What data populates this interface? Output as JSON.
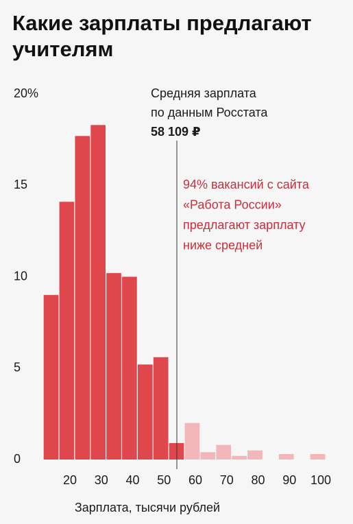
{
  "chart_data": {
    "type": "histogram",
    "title": [
      "Какие зарплаты предлагают",
      "учителям"
    ],
    "xlabel": "Зарплата, тысячи рублей",
    "bins": [
      11.5,
      16.5,
      21.5,
      26.5,
      31.5,
      36.5,
      41.5,
      46.5,
      51.5,
      56.5,
      61.5,
      66.5,
      71.5,
      76.5,
      81.5,
      86.5,
      91.5,
      96.5,
      101.5
    ],
    "values": [
      9.0,
      14.1,
      17.7,
      18.3,
      10.2,
      10.0,
      5.2,
      5.6,
      0.9,
      2.0,
      0.4,
      0.8,
      0.2,
      0.5,
      0,
      0.3,
      0,
      0.3
    ],
    "colors": [
      "#e0474c",
      "#e0474c",
      "#e0474c",
      "#e0474c",
      "#e0474c",
      "#e0474c",
      "#e0474c",
      "#e0474c",
      "#e0474c",
      "#f2b7ba",
      "#f2b7ba",
      "#f2b7ba",
      "#f2b7ba",
      "#f2b7ba",
      "#f2b7ba",
      "#f2b7ba",
      "#f2b7ba",
      "#f2b7ba"
    ],
    "xlim": [
      11.5,
      101.5
    ],
    "xticks": [
      20,
      30,
      40,
      50,
      60,
      70,
      80,
      90,
      100
    ],
    "ylim": [
      0,
      20
    ],
    "yticks": [
      0,
      5,
      10,
      15,
      {
        "value": 20,
        "label": "20%"
      }
    ],
    "mean_annotation": [
      "Средняя зарплата",
      "по данным Росстата",
      "58 109 ₽"
    ],
    "note": [
      "94% вакансий с сайта",
      "«Работа России»",
      "предлагают зарплату",
      "ниже средней"
    ],
    "note_color": "#c62f3c"
  }
}
